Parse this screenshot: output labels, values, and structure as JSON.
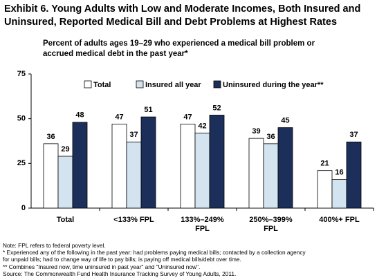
{
  "chart_data": {
    "type": "bar",
    "title": "Exhibit 6. Young Adults with Low and Moderate Incomes, Both Insured and Uninsured, Reported Medical Bill and Debt Problems at Highest Rates",
    "subtitle": "Percent of adults ages 19–29 who experienced a medical bill problem or accrued medical debt in the past year*",
    "categories": [
      "Total",
      "<133% FPL",
      "133%–249% FPL",
      "250%–399% FPL",
      "400%+ FPL"
    ],
    "series": [
      {
        "name": "Total",
        "color": "#ffffff",
        "values": [
          36,
          47,
          47,
          39,
          21
        ]
      },
      {
        "name": "Insured all year",
        "color": "#d3e3ef",
        "values": [
          29,
          37,
          42,
          36,
          16
        ]
      },
      {
        "name": "Uninsured during the year**",
        "color": "#1c2f5a",
        "values": [
          48,
          51,
          52,
          45,
          37
        ]
      }
    ],
    "ylim": [
      0,
      75
    ],
    "yticks": [
      0,
      25,
      50,
      75
    ],
    "grid": false,
    "legend": "top",
    "notes": [
      "Note: FPL refers to federal poverty level.",
      "* Experienced any of the following in the past year: had problems paying medical bills; contacted by a collection agency for unpaid bills; had to change way of life to pay bills; is paying off medical bills/debt over time.",
      "** Combines \"Insured now, time uninsured in past year\" and \"Uninsured now\".",
      "Source: The Commonwealth Fund Health Insurance Tracking Survey of Young  Adults, 2011."
    ]
  }
}
